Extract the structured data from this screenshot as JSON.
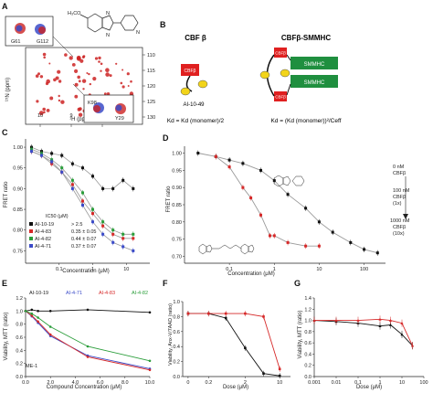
{
  "panels": {
    "a": {
      "letter": "A",
      "inset_top_label": "G61",
      "inset_top_label2": "G112",
      "inset_bottom_label": "K98",
      "inset_bottom_label2": "Y29",
      "y_ticks": [
        "110",
        "115",
        "120",
        "125",
        "130"
      ],
      "x_ticks": [
        "10",
        "9",
        "8"
      ],
      "x_label": "¹H (ppm)",
      "y_label": "¹⁵N (ppm)",
      "methoxy_label": "H₃CO"
    },
    "b": {
      "letter": "B",
      "left_title": "CBF β",
      "right_title": "CBFβ-SMMHC",
      "compound": "AI-10-49",
      "box_label": "CBFβ",
      "smmhc_label": "SMMHC",
      "left_eq": "Kd = Kd (monomer)/2",
      "right_eq": "Kd = (Kd (monomer))²/Ceff"
    },
    "c": {
      "letter": "C",
      "y_label": "FRET ratio",
      "x_label": "Concentration (μM)",
      "ic50_header": "IC50 (μM)",
      "y_ticks": [
        "0.75",
        "0.80",
        "0.85",
        "0.90",
        "0.95",
        "1.00"
      ],
      "x_ticks": [
        "0.1",
        "1",
        "10"
      ],
      "legend": [
        {
          "name": "AI-10-19",
          "value": "> 2.5"
        },
        {
          "name": "AI-4-83",
          "value": "0.35 ± 0.05"
        },
        {
          "name": "AI-4-82",
          "value": "0.44 ± 0.07"
        },
        {
          "name": "AI-4-71",
          "value": "0.37 ± 0.07"
        }
      ]
    },
    "d": {
      "letter": "D",
      "y_label": "FRET ratio",
      "x_label": "Concentration (μM)",
      "y_ticks": [
        "0.70",
        "0.75",
        "0.80",
        "0.85",
        "0.90",
        "0.95",
        "1.00"
      ],
      "x_ticks": [
        "0.1",
        "1",
        "10",
        "100"
      ],
      "ann1": [
        "0 nM",
        "CBFβ"
      ],
      "ann2": [
        "100 nM",
        "CBFβ",
        "(1x)"
      ],
      "ann3": [
        "1000 nM",
        "CBFβ",
        "(10x)"
      ]
    },
    "e": {
      "letter": "E",
      "y_label": "Viability, MTT (ratio)",
      "x_label": "Compound Concentration (μM)",
      "cell_line": "ME-1",
      "y_ticks": [
        "0.0",
        "0.2",
        "0.4",
        "0.6",
        "0.8",
        "1.0",
        "1.2"
      ],
      "x_ticks": [
        "0.0",
        "2.0",
        "4.0",
        "6.0",
        "8.0",
        "10.0"
      ],
      "legend": [
        "AI-10-19",
        "AI-4-71",
        "AI-4-83",
        "AI-4-82"
      ]
    },
    "f": {
      "letter": "F",
      "y_label": "Viability, Anx-V/7AAD (ratio)",
      "x_label": "Dose (μM)",
      "y_ticks": [
        "0.0",
        "0.2",
        "0.4",
        "0.6",
        "0.8",
        "1.0"
      ],
      "x_ticks": [
        "0",
        "0.2",
        "2",
        "10"
      ]
    },
    "g": {
      "letter": "G",
      "y_label": "Viability, MTT (ratio)",
      "x_label": "Dose (μM)",
      "y_ticks": [
        "0.0",
        "0.2",
        "0.4",
        "0.6",
        "0.8",
        "1.0",
        "1.2",
        "1.4"
      ],
      "x_ticks": [
        "0.001",
        "0.01",
        "0.1",
        "1",
        "10",
        "100"
      ]
    }
  },
  "colors": {
    "black": "#111111",
    "red": "#d62828",
    "green": "#2a9d3a",
    "blue": "#3b4bc8",
    "grey": "#9a9a9a",
    "smmhc": "#1f8f3f",
    "cbf": "#e02020",
    "yellow": "#f2d41a"
  },
  "chart_data": [
    {
      "type": "scatter",
      "panel": "C",
      "xlabel": "Concentration (μM)",
      "ylabel": "FRET ratio",
      "xscale": "log",
      "xlim": [
        0.01,
        50
      ],
      "ylim": [
        0.72,
        1.02
      ],
      "series": [
        {
          "name": "AI-10-19",
          "x": [
            0.015,
            0.03,
            0.06,
            0.12,
            0.25,
            0.5,
            1,
            2,
            4,
            8,
            16
          ],
          "y": [
            1.0,
            0.99,
            0.985,
            0.98,
            0.96,
            0.95,
            0.93,
            0.9,
            0.9,
            0.92,
            0.9
          ]
        },
        {
          "name": "AI-4-83",
          "x": [
            0.015,
            0.03,
            0.06,
            0.12,
            0.25,
            0.5,
            1,
            2,
            4,
            8,
            16
          ],
          "y": [
            0.99,
            0.98,
            0.96,
            0.94,
            0.91,
            0.87,
            0.84,
            0.81,
            0.79,
            0.78,
            0.78
          ]
        },
        {
          "name": "AI-4-82",
          "x": [
            0.015,
            0.03,
            0.06,
            0.12,
            0.25,
            0.5,
            1,
            2,
            4,
            8,
            16
          ],
          "y": [
            0.995,
            0.985,
            0.97,
            0.95,
            0.92,
            0.89,
            0.85,
            0.82,
            0.8,
            0.79,
            0.79
          ]
        },
        {
          "name": "AI-4-71",
          "x": [
            0.015,
            0.03,
            0.06,
            0.12,
            0.25,
            0.5,
            1,
            2,
            4,
            8,
            16
          ],
          "y": [
            0.99,
            0.98,
            0.965,
            0.94,
            0.9,
            0.86,
            0.82,
            0.79,
            0.77,
            0.76,
            0.75
          ]
        }
      ]
    },
    {
      "type": "scatter",
      "panel": "D",
      "xlabel": "Concentration (μM)",
      "ylabel": "FRET ratio",
      "xscale": "log",
      "xlim": [
        0.01,
        300
      ],
      "ylim": [
        0.68,
        1.02
      ],
      "series": [
        {
          "name": "black",
          "x": [
            0.02,
            0.05,
            0.1,
            0.2,
            0.5,
            1,
            2,
            5,
            10,
            20,
            50,
            100,
            200
          ],
          "y": [
            1.0,
            0.99,
            0.98,
            0.97,
            0.95,
            0.92,
            0.88,
            0.84,
            0.8,
            0.77,
            0.74,
            0.72,
            0.71
          ]
        },
        {
          "name": "red",
          "x": [
            0.05,
            0.1,
            0.2,
            0.3,
            0.5,
            0.8,
            1,
            2,
            5,
            10
          ],
          "y": [
            0.99,
            0.96,
            0.9,
            0.87,
            0.82,
            0.76,
            0.76,
            0.74,
            0.73,
            0.73
          ]
        }
      ]
    },
    {
      "type": "line",
      "panel": "E",
      "xlabel": "Compound Concentration (μM)",
      "ylabel": "Viability, MTT (ratio)",
      "xlim": [
        0,
        10
      ],
      "ylim": [
        0,
        1.2
      ],
      "series": [
        {
          "name": "AI-10-19",
          "x": [
            0,
            0.5,
            1,
            2,
            5,
            10
          ],
          "y": [
            1.0,
            1.02,
            1.0,
            1.0,
            1.02,
            0.98
          ]
        },
        {
          "name": "AI-4-71",
          "x": [
            0,
            0.5,
            1,
            2,
            5,
            10
          ],
          "y": [
            1.0,
            0.92,
            0.82,
            0.62,
            0.32,
            0.12
          ]
        },
        {
          "name": "AI-4-83",
          "x": [
            0,
            0.5,
            1,
            2,
            5,
            10
          ],
          "y": [
            1.0,
            0.93,
            0.84,
            0.64,
            0.3,
            0.1
          ]
        },
        {
          "name": "AI-4-82",
          "x": [
            0,
            0.5,
            1,
            2,
            5,
            10
          ],
          "y": [
            1.0,
            0.96,
            0.9,
            0.76,
            0.46,
            0.24
          ]
        }
      ]
    },
    {
      "type": "line",
      "panel": "F",
      "xlabel": "Dose (μM)",
      "ylabel": "Viability, Anx-V/7AAD (ratio)",
      "ylim": [
        0,
        1.0
      ],
      "series": [
        {
          "name": "black",
          "x": [
            0,
            0.2,
            0.5,
            2,
            5,
            10
          ],
          "y": [
            0.84,
            0.84,
            0.78,
            0.38,
            0.04,
            0.01
          ]
        },
        {
          "name": "red",
          "x": [
            0,
            0.2,
            0.5,
            2,
            5,
            10
          ],
          "y": [
            0.84,
            0.84,
            0.84,
            0.84,
            0.8,
            0.1
          ]
        }
      ]
    },
    {
      "type": "line",
      "panel": "G",
      "xlabel": "Dose (μM)",
      "ylabel": "Viability, MTT (ratio)",
      "xscale": "log",
      "xlim": [
        0.001,
        100
      ],
      "ylim": [
        0,
        1.4
      ],
      "series": [
        {
          "name": "black",
          "x": [
            0.001,
            0.01,
            0.1,
            1,
            3,
            10,
            30
          ],
          "y": [
            1.0,
            0.98,
            0.95,
            0.9,
            0.92,
            0.75,
            0.55
          ]
        },
        {
          "name": "red",
          "x": [
            0.001,
            0.01,
            0.1,
            1,
            3,
            10,
            30
          ],
          "y": [
            1.0,
            1.0,
            1.0,
            1.02,
            1.0,
            0.95,
            0.55
          ]
        }
      ]
    }
  ]
}
